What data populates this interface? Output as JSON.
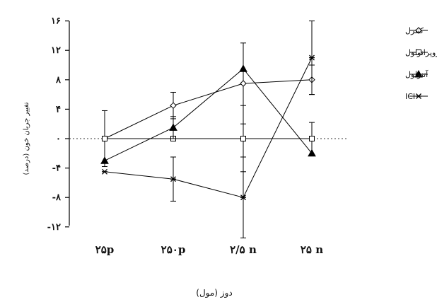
{
  "chart_data": {
    "type": "line",
    "title": "",
    "xlabel": "دوز (مول)",
    "ylabel": "تغییر جریان خون (درصد)",
    "categories": [
      "۲۵p",
      "۲۵۰p",
      "۲/۵ n",
      "۲۵ n"
    ],
    "y_tick_labels": [
      "۱۶",
      "۱۲",
      "۸",
      "۴",
      "۰",
      "-۴",
      "-۸",
      "-۱۲"
    ],
    "y_ticks": [
      16,
      12,
      8,
      4,
      0,
      -4,
      -8,
      -12
    ],
    "ylim": [
      -13,
      17
    ],
    "reference_line": 0,
    "legend_position": "right",
    "series": [
      {
        "name": "کنترل",
        "marker": "diamond-open",
        "values": [
          0,
          4.5,
          7.5,
          8
        ],
        "errors": [
          3.8,
          1.8,
          5.5,
          2
        ]
      },
      {
        "name": "پروپرانولول",
        "marker": "square-open",
        "values": [
          0,
          0,
          0,
          0
        ],
        "errors": [
          0,
          0,
          4.5,
          2.2
        ]
      },
      {
        "name": "آتنولول",
        "marker": "triangle-filled",
        "values": [
          -3,
          1.5,
          9.5,
          -2
        ],
        "errors": [
          0,
          1.5,
          0,
          0
        ]
      },
      {
        "name": "ICI",
        "marker": "star",
        "values": [
          -4.5,
          -5.5,
          -8,
          11
        ],
        "errors": [
          0,
          3,
          5.5,
          5
        ]
      }
    ]
  }
}
